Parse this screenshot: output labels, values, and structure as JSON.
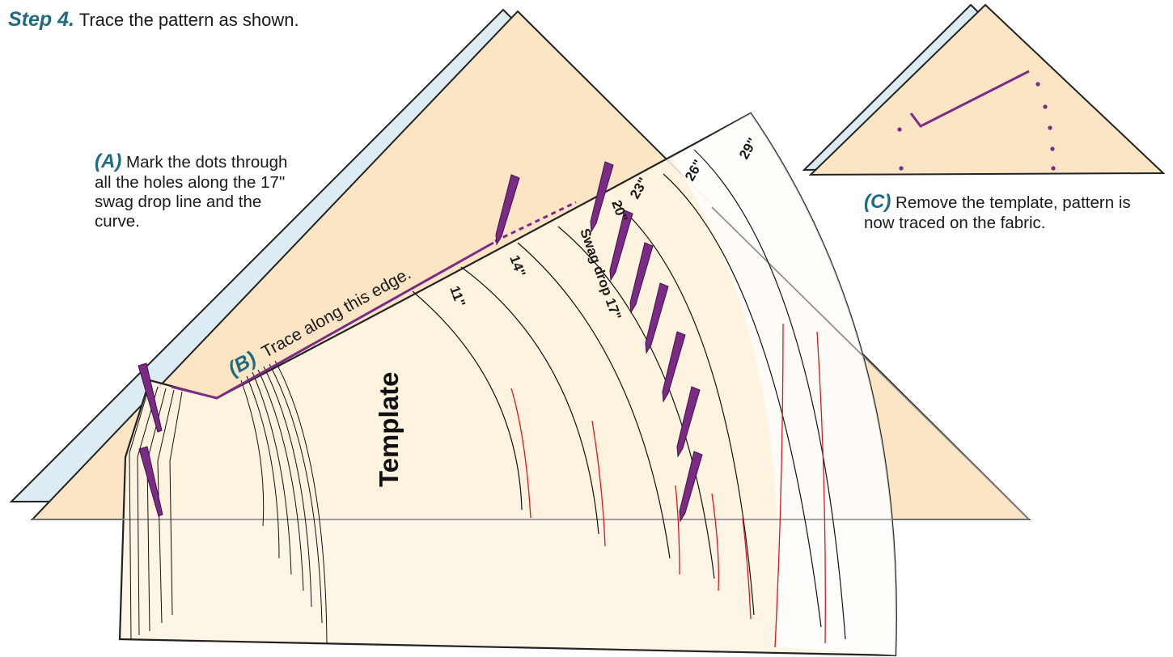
{
  "step": {
    "label": "Step 4.",
    "text": "Trace the pattern as shown."
  },
  "note_a": {
    "label": "(A)",
    "text": "Mark the dots through all the holes along the 17\" swag drop line and the curve."
  },
  "note_b": {
    "label": "(B)",
    "text": "Trace along this edge."
  },
  "note_c": {
    "label": "(C)",
    "text": "Remove the template, pattern is now traced on the fabric."
  },
  "template": {
    "title": "Template",
    "marks": [
      "11\"",
      "14\"",
      "Swag drop 17\"",
      "20\"",
      "23\"",
      "26\"",
      "29\""
    ]
  },
  "colors": {
    "fabric": "#fbe5c4",
    "template": "#fdf5e2",
    "pencil": "#7b2a86",
    "accent": "#1f6b82",
    "curve": "#e0151c"
  }
}
